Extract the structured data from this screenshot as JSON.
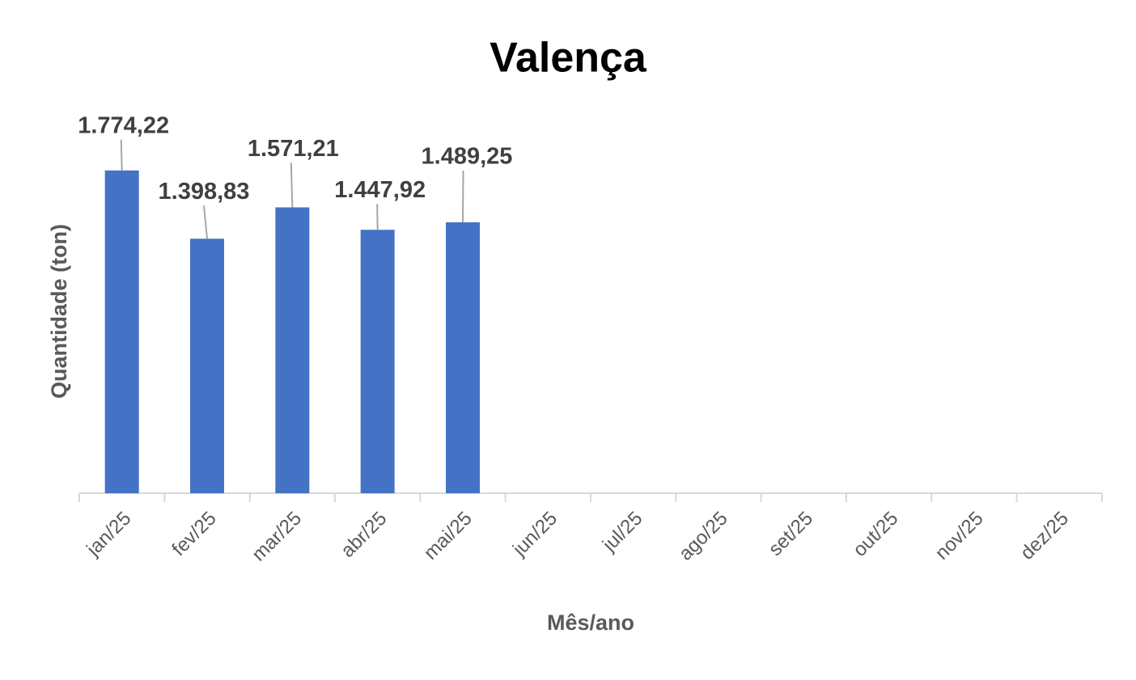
{
  "chart_data": {
    "type": "bar",
    "title": "Valença",
    "x_label": "Mês/ano",
    "y_label": "Quantidade (ton)",
    "categories": [
      "jan/25",
      "fev/25",
      "mar/25",
      "abr/25",
      "mai/25",
      "jun/25",
      "jul/25",
      "ago/25",
      "set/25",
      "out/25",
      "nov/25",
      "dez/25"
    ],
    "values": [
      1774.22,
      1398.83,
      1571.21,
      1447.92,
      1489.25,
      null,
      null,
      null,
      null,
      null,
      null,
      null
    ],
    "value_labels": [
      "1.774,22",
      "1.398,83",
      "1.571,21",
      "1.447,92",
      "1.489,25",
      null,
      null,
      null,
      null,
      null,
      null,
      null
    ],
    "color": "#4472c4",
    "ylim": [
      0,
      2000
    ]
  }
}
